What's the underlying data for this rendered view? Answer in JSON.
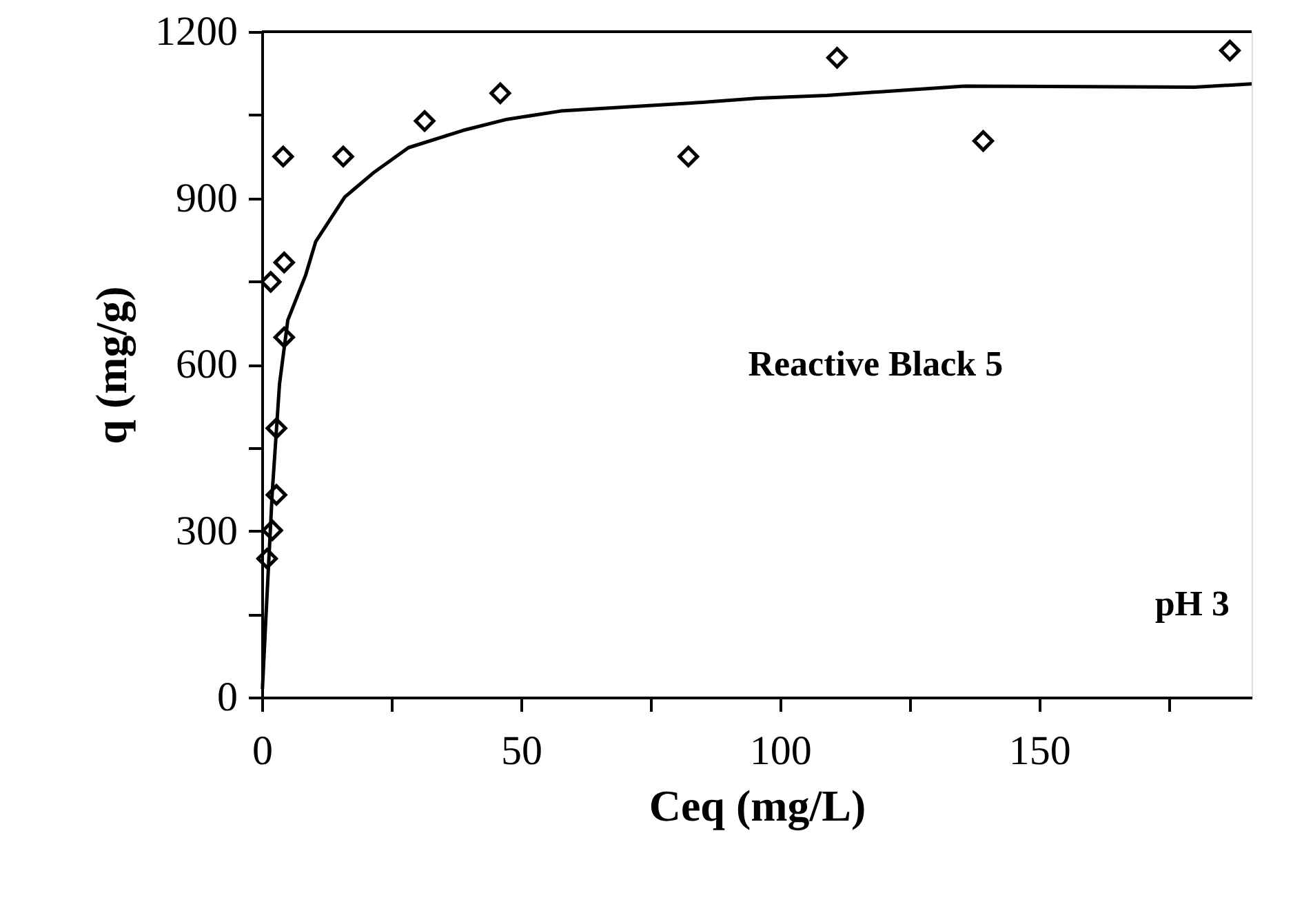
{
  "chart_data": {
    "type": "scatter",
    "xlabel": "Ceq (mg/L)",
    "ylabel": "q (mg/g)",
    "annotations": [
      "Reactive Black 5",
      "pH 3"
    ],
    "xlim": [
      0,
      191
    ],
    "ylim": [
      0,
      1200
    ],
    "xticks": [
      0,
      {
        "value": 25,
        "label": null
      },
      50,
      {
        "value": 75,
        "label": null
      },
      100,
      {
        "value": 125,
        "label": null
      },
      150,
      {
        "value": 175,
        "label": null
      }
    ],
    "yticks": [
      0,
      {
        "value": 150,
        "label": null
      },
      300,
      {
        "value": 450,
        "label": null
      },
      600,
      {
        "value": 750,
        "label": null
      },
      900,
      {
        "value": 1050,
        "label": null
      },
      1200
    ],
    "grid": false,
    "series": [
      {
        "marker": "diamond",
        "color": "#000000",
        "x": [
          1.0,
          2.0,
          2.8,
          2.8,
          4.3,
          1.7,
          4.3,
          4.1,
          15.7,
          31.4,
          46,
          82.3,
          111,
          139.2,
          186.8
        ],
        "values": [
          250,
          301,
          365,
          485,
          649,
          749,
          784,
          975,
          975,
          1039,
          1089,
          975,
          1153,
          1003,
          1166
        ]
      },
      {
        "type": "line",
        "marker": "none",
        "line_style": "solid",
        "color": "#000000",
        "x": [
          0.1,
          0.8,
          2,
          3.4,
          5,
          8.4,
          10.4,
          16,
          21.7,
          28.3,
          38.8,
          47.3,
          57.7,
          82.4,
          95.7,
          109,
          135.6,
          180,
          191
        ],
        "values": [
          15,
          149,
          370,
          565,
          680,
          760,
          822,
          902,
          947,
          991,
          1022,
          1042,
          1057,
          1071,
          1080,
          1085,
          1102,
          1100,
          1106
        ]
      }
    ]
  }
}
